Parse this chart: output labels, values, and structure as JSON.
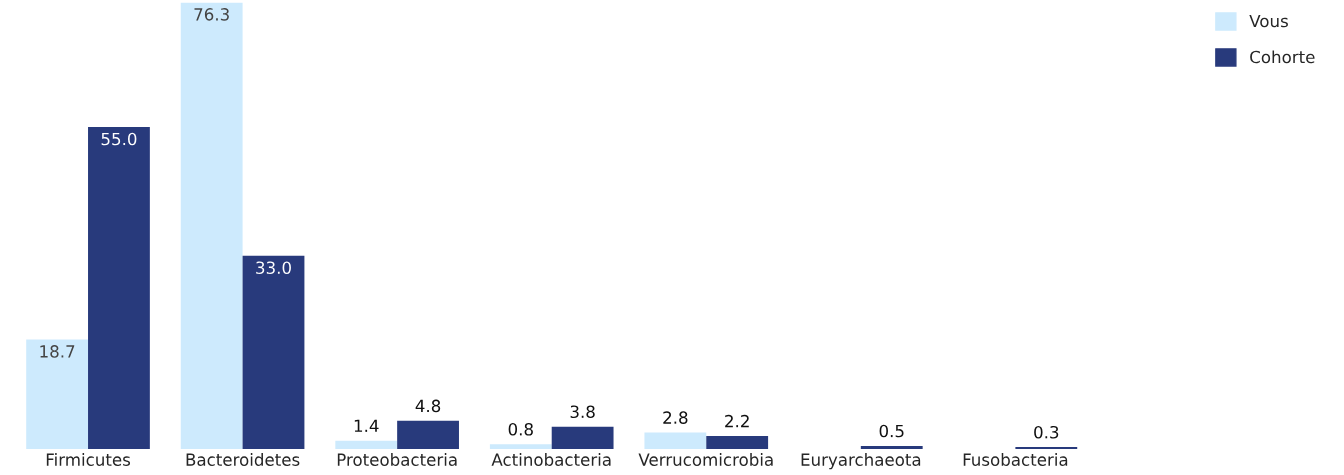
{
  "chart_data": {
    "type": "bar",
    "categories": [
      "Firmicutes",
      "Bacteroidetes",
      "Proteobacteria",
      "Actinobacteria",
      "Verrucomicrobia",
      "Euryarchaeota",
      "Fusobacteria"
    ],
    "series": [
      {
        "name": "Vous",
        "color": "#cdeafd",
        "values": [
          18.7,
          76.3,
          1.4,
          0.8,
          2.8,
          null,
          null
        ],
        "value_labels": [
          "18.7",
          "76.3",
          "1.4",
          "0.8",
          "2.8",
          null,
          null
        ]
      },
      {
        "name": "Cohorte",
        "color": "#283a7c",
        "values": [
          55.0,
          33.0,
          4.8,
          3.8,
          2.2,
          0.5,
          0.3
        ],
        "value_labels": [
          "55.0",
          "33.0",
          "4.8",
          "3.8",
          "2.2",
          "0.5",
          "0.3"
        ]
      }
    ],
    "legend": "top right",
    "grid": false
  }
}
